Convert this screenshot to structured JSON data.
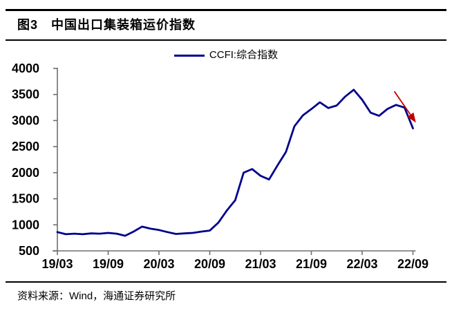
{
  "header": {
    "title": "图3　中国出口集装箱运价指数"
  },
  "legend": {
    "label": "CCFI:综合指数"
  },
  "source": {
    "text": "资料来源：Wind，海通证券研究所"
  },
  "chart_data": {
    "type": "line",
    "title": "中国出口集装箱运价指数",
    "xlabel": "",
    "ylabel": "",
    "ylim": [
      500,
      4000
    ],
    "y_ticks": [
      500,
      1000,
      1500,
      2000,
      2500,
      3000,
      3500,
      4000
    ],
    "x_tick_labels": [
      "19/03",
      "19/09",
      "20/03",
      "20/09",
      "21/03",
      "21/09",
      "22/03",
      "22/09"
    ],
    "grid": false,
    "legend_position": "top-center",
    "axis_color": "#6E6E6E",
    "series": [
      {
        "name": "CCFI:综合指数",
        "color": "#00008B",
        "x": [
          "19/03",
          "19/04",
          "19/05",
          "19/06",
          "19/07",
          "19/08",
          "19/09",
          "19/10",
          "19/11",
          "19/12",
          "20/01",
          "20/02",
          "20/03",
          "20/04",
          "20/05",
          "20/06",
          "20/07",
          "20/08",
          "20/09",
          "20/10",
          "20/11",
          "20/12",
          "21/01",
          "21/02",
          "21/03",
          "21/04",
          "21/05",
          "21/06",
          "21/07",
          "21/08",
          "21/09",
          "21/10",
          "21/11",
          "21/12",
          "22/01",
          "22/02",
          "22/03",
          "22/04",
          "22/05",
          "22/06",
          "22/07",
          "22/08",
          "22/09"
        ],
        "values": [
          860,
          820,
          830,
          820,
          835,
          830,
          845,
          830,
          790,
          870,
          965,
          925,
          900,
          860,
          825,
          835,
          845,
          870,
          890,
          1040,
          1270,
          1470,
          2000,
          2070,
          1940,
          1870,
          2140,
          2400,
          2890,
          3100,
          3220,
          3350,
          3240,
          3290,
          3460,
          3590,
          3400,
          3150,
          3090,
          3225,
          3300,
          3250,
          2850
        ]
      }
    ],
    "annotation": {
      "type": "arrow",
      "color": "#C00000",
      "from_index": 39.8,
      "from_value": 3560,
      "to_index": 42.35,
      "to_value": 2960
    }
  }
}
